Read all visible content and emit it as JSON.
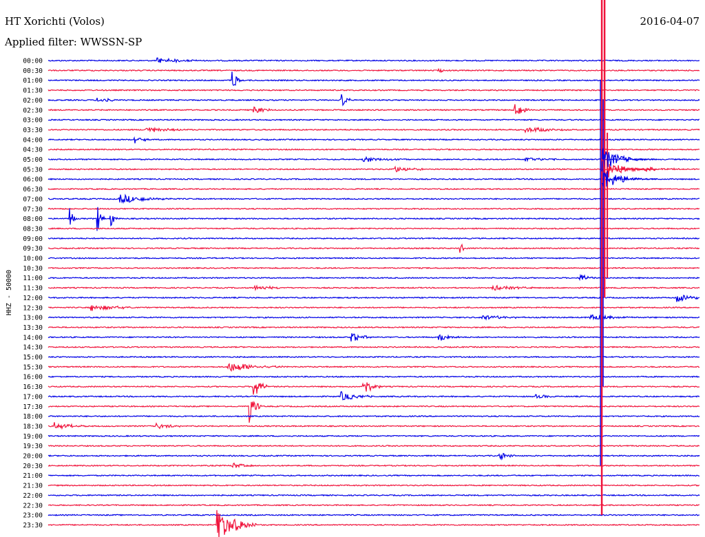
{
  "chart_data": {
    "type": "line",
    "title": "HT Xorichti (Volos)",
    "subtitle": "Applied filter: WWSSN-SP",
    "date": "2016-04-07",
    "ylabel": "HHZ - 50000",
    "row_labels": [
      "00:00",
      "00:30",
      "01:00",
      "01:30",
      "02:00",
      "02:30",
      "03:00",
      "03:30",
      "04:00",
      "04:30",
      "05:00",
      "05:30",
      "06:00",
      "06:30",
      "07:00",
      "07:30",
      "08:00",
      "08:30",
      "09:00",
      "09:30",
      "10:00",
      "10:30",
      "11:00",
      "11:30",
      "12:00",
      "12:30",
      "13:00",
      "13:30",
      "14:00",
      "14:30",
      "15:00",
      "15:30",
      "16:00",
      "16:30",
      "17:00",
      "17:30",
      "18:00",
      "18:30",
      "19:00",
      "19:30",
      "20:00",
      "20:30",
      "21:00",
      "21:30",
      "22:00",
      "22:30",
      "23:00",
      "23:30"
    ],
    "trace_colors": [
      "#0000e6",
      "#f0143c"
    ],
    "minutes_per_row": 30,
    "grid": false,
    "events": [
      {
        "row": 0,
        "minute": 5,
        "amp": 0.35,
        "dur": 2.0
      },
      {
        "row": 1,
        "minute": 18,
        "amp": 0.2,
        "dur": 0.6
      },
      {
        "row": 2,
        "minute": 8.5,
        "amp": 1.2,
        "dur": 0.4
      },
      {
        "row": 4,
        "minute": 13.5,
        "amp": 0.9,
        "dur": 0.5
      },
      {
        "row": 4,
        "minute": 2.3,
        "amp": 0.3,
        "dur": 1.0
      },
      {
        "row": 5,
        "minute": 9.5,
        "amp": 0.4,
        "dur": 1.0
      },
      {
        "row": 5,
        "minute": 21.5,
        "amp": 0.8,
        "dur": 0.8
      },
      {
        "row": 7,
        "minute": 4.5,
        "amp": 0.3,
        "dur": 2.0
      },
      {
        "row": 7,
        "minute": 22,
        "amp": 0.35,
        "dur": 2.0
      },
      {
        "row": 8,
        "minute": 4,
        "amp": 0.45,
        "dur": 0.8
      },
      {
        "row": 10,
        "minute": 14.5,
        "amp": 0.3,
        "dur": 2.0
      },
      {
        "row": 10,
        "minute": 22,
        "amp": 0.3,
        "dur": 1.5
      },
      {
        "row": 11,
        "minute": 16,
        "amp": 0.35,
        "dur": 1.5
      },
      {
        "row": 11,
        "minute": 27.5,
        "amp": 0.25,
        "dur": 2.0
      },
      {
        "row": 14,
        "minute": 3.3,
        "amp": 0.5,
        "dur": 2.5
      },
      {
        "row": 16,
        "minute": 2.3,
        "amp": 1.6,
        "dur": 0.3
      },
      {
        "row": 16,
        "minute": 2.9,
        "amp": 1.1,
        "dur": 0.3
      },
      {
        "row": 16,
        "minute": 1,
        "amp": 1.4,
        "dur": 0.3
      },
      {
        "row": 19,
        "minute": 19,
        "amp": 1.0,
        "dur": 0.2
      },
      {
        "row": 22,
        "minute": 24.5,
        "amp": 0.7,
        "dur": 0.6
      },
      {
        "row": 23,
        "minute": 9.5,
        "amp": 0.3,
        "dur": 1.5
      },
      {
        "row": 23,
        "minute": 20.5,
        "amp": 0.3,
        "dur": 2.0
      },
      {
        "row": 24,
        "minute": 29,
        "amp": 0.5,
        "dur": 1.5
      },
      {
        "row": 25,
        "minute": 2,
        "amp": 0.4,
        "dur": 2.0
      },
      {
        "row": 26,
        "minute": 20,
        "amp": 0.3,
        "dur": 2.0
      },
      {
        "row": 26,
        "minute": 25,
        "amp": 0.35,
        "dur": 2.0
      },
      {
        "row": 28,
        "minute": 14,
        "amp": 0.5,
        "dur": 1.0
      },
      {
        "row": 28,
        "minute": 18,
        "amp": 0.6,
        "dur": 1.0
      },
      {
        "row": 31,
        "minute": 8.3,
        "amp": 0.6,
        "dur": 2.5
      },
      {
        "row": 33,
        "minute": 9.5,
        "amp": 1.6,
        "dur": 0.6
      },
      {
        "row": 33,
        "minute": 14.5,
        "amp": 1.0,
        "dur": 0.8
      },
      {
        "row": 34,
        "minute": 13.5,
        "amp": 0.5,
        "dur": 1.5
      },
      {
        "row": 34,
        "minute": 22.5,
        "amp": 0.3,
        "dur": 0.8
      },
      {
        "row": 35,
        "minute": 9.3,
        "amp": 1.8,
        "dur": 0.5
      },
      {
        "row": 37,
        "minute": 0.3,
        "amp": 0.4,
        "dur": 1.5
      },
      {
        "row": 37,
        "minute": 5,
        "amp": 0.3,
        "dur": 1.5
      },
      {
        "row": 40,
        "minute": 20.8,
        "amp": 0.5,
        "dur": 0.8
      },
      {
        "row": 41,
        "minute": 8.5,
        "amp": 0.35,
        "dur": 1.0
      },
      {
        "row": 47,
        "minute": 7.8,
        "amp": 1.8,
        "dur": 1.8
      }
    ],
    "major_event": {
      "row": 0,
      "minute": 25.5,
      "note": "large earthquake spanning many rows"
    }
  }
}
